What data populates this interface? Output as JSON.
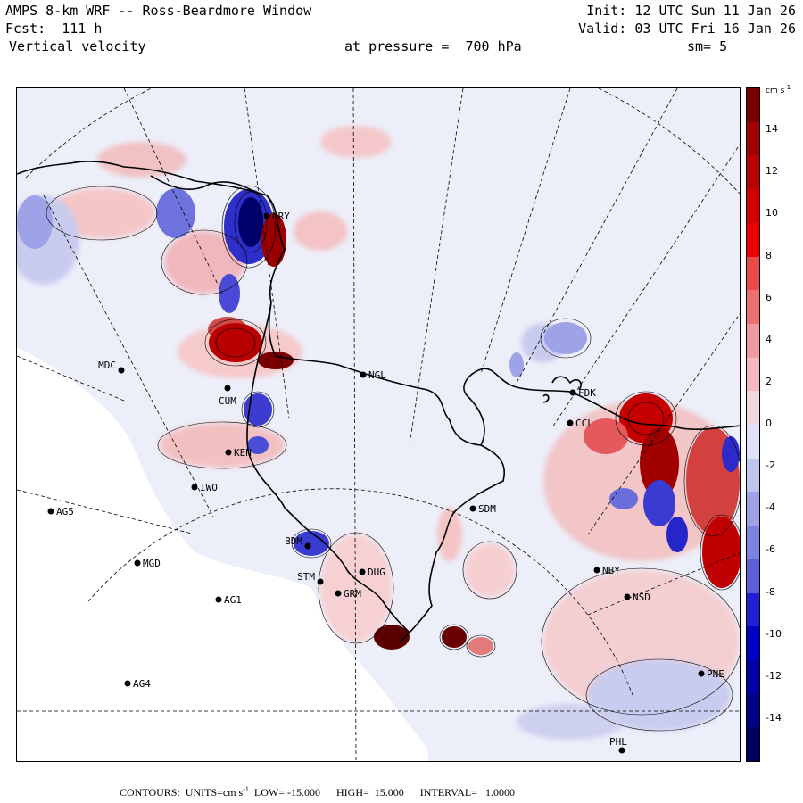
{
  "header": {
    "title": "AMPS 8-km WRF -- Ross-Beardmore Window",
    "init": "Init: 12 UTC Sun 11 Jan 26",
    "fcst": "Fcst:  111 h",
    "valid": "Valid: 03 UTC Fri 16 Jan 26",
    "field": "Vertical velocity",
    "pressure": "at pressure =  700 hPa",
    "smooth": "sm= 5"
  },
  "colorbar": {
    "units_label": "cm s",
    "units_exp": "-1",
    "ticks": [
      "14",
      "12",
      "10",
      "8",
      "6",
      "4",
      "2",
      "0",
      "-2",
      "-4",
      "-6",
      "-8",
      "-10",
      "-12",
      "-14"
    ],
    "min": -16,
    "max": 16,
    "colors_pos": [
      "#f0d8dc",
      "#f4b8be",
      "#ee9a9e",
      "#ee6f72",
      "#ea4a4a",
      "#ee0000",
      "#d40000",
      "#bb0000",
      "#a00000",
      "#7a0000"
    ],
    "colors_neg": [
      "#dfe2f6",
      "#c0c5ee",
      "#9da3e6",
      "#7d81df",
      "#5e5ed8",
      "#1f1fd8",
      "#0000c8",
      "#0000a8",
      "#000088",
      "#000060"
    ]
  },
  "stations": [
    {
      "name": "MDC",
      "label": "MDC"
    },
    {
      "name": "NGL",
      "label": "NGL"
    },
    {
      "name": "FDK",
      "label": "FDK"
    },
    {
      "name": "CCL",
      "label": "CCL"
    },
    {
      "name": "CUM",
      "label": "CUM"
    },
    {
      "name": "KEN",
      "label": "KEN"
    },
    {
      "name": "IWO",
      "label": "IWO"
    },
    {
      "name": "AG5",
      "label": "AG5"
    },
    {
      "name": "SDM",
      "label": "SDM"
    },
    {
      "name": "BDM",
      "label": "BDM"
    },
    {
      "name": "MGD",
      "label": "MGD"
    },
    {
      "name": "NBY",
      "label": "NBY"
    },
    {
      "name": "DUG",
      "label": "DUG"
    },
    {
      "name": "STM",
      "label": "STM"
    },
    {
      "name": "GRM",
      "label": "GRM"
    },
    {
      "name": "AG1",
      "label": "AG1"
    },
    {
      "name": "NSD",
      "label": "NSD"
    },
    {
      "name": "PNE",
      "label": "PNE"
    },
    {
      "name": "AG4",
      "label": "AG4"
    },
    {
      "name": "PHL",
      "label": "PHL"
    },
    {
      "name": "NRY",
      "label": "NRY"
    }
  ],
  "footer": {
    "contours_label": "CONTOURS:  UNITS=cm s",
    "units_exp": "-1",
    "rest": "  LOW= -15.000      HIGH=  15.000      INTERVAL=   1.0000"
  }
}
